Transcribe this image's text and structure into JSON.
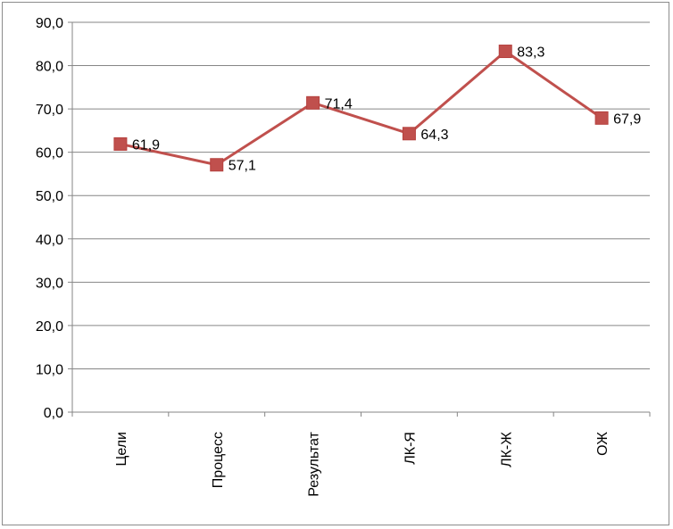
{
  "chart_data": {
    "type": "line",
    "categories": [
      "Цели",
      "Процесс",
      "Результат",
      "ЛК-Я",
      "ЛК-Ж",
      "ОЖ"
    ],
    "series": [
      {
        "values": [
          61.9,
          57.1,
          71.4,
          64.3,
          83.3,
          67.9
        ],
        "value_labels": [
          "61,9",
          "57,1",
          "71,4",
          "64,3",
          "83,3",
          "67,9"
        ],
        "color": "#c0504d",
        "marker": "square"
      }
    ],
    "y_ticks": [
      0,
      10,
      20,
      30,
      40,
      50,
      60,
      70,
      80,
      90
    ],
    "y_tick_labels": [
      "0,0",
      "10,0",
      "20,0",
      "30,0",
      "40,0",
      "50,0",
      "60,0",
      "70,0",
      "80,0",
      "90,0"
    ],
    "ylim": [
      0,
      90
    ],
    "grid": true,
    "legend": "none",
    "title": "",
    "xlabel": "",
    "ylabel": ""
  }
}
